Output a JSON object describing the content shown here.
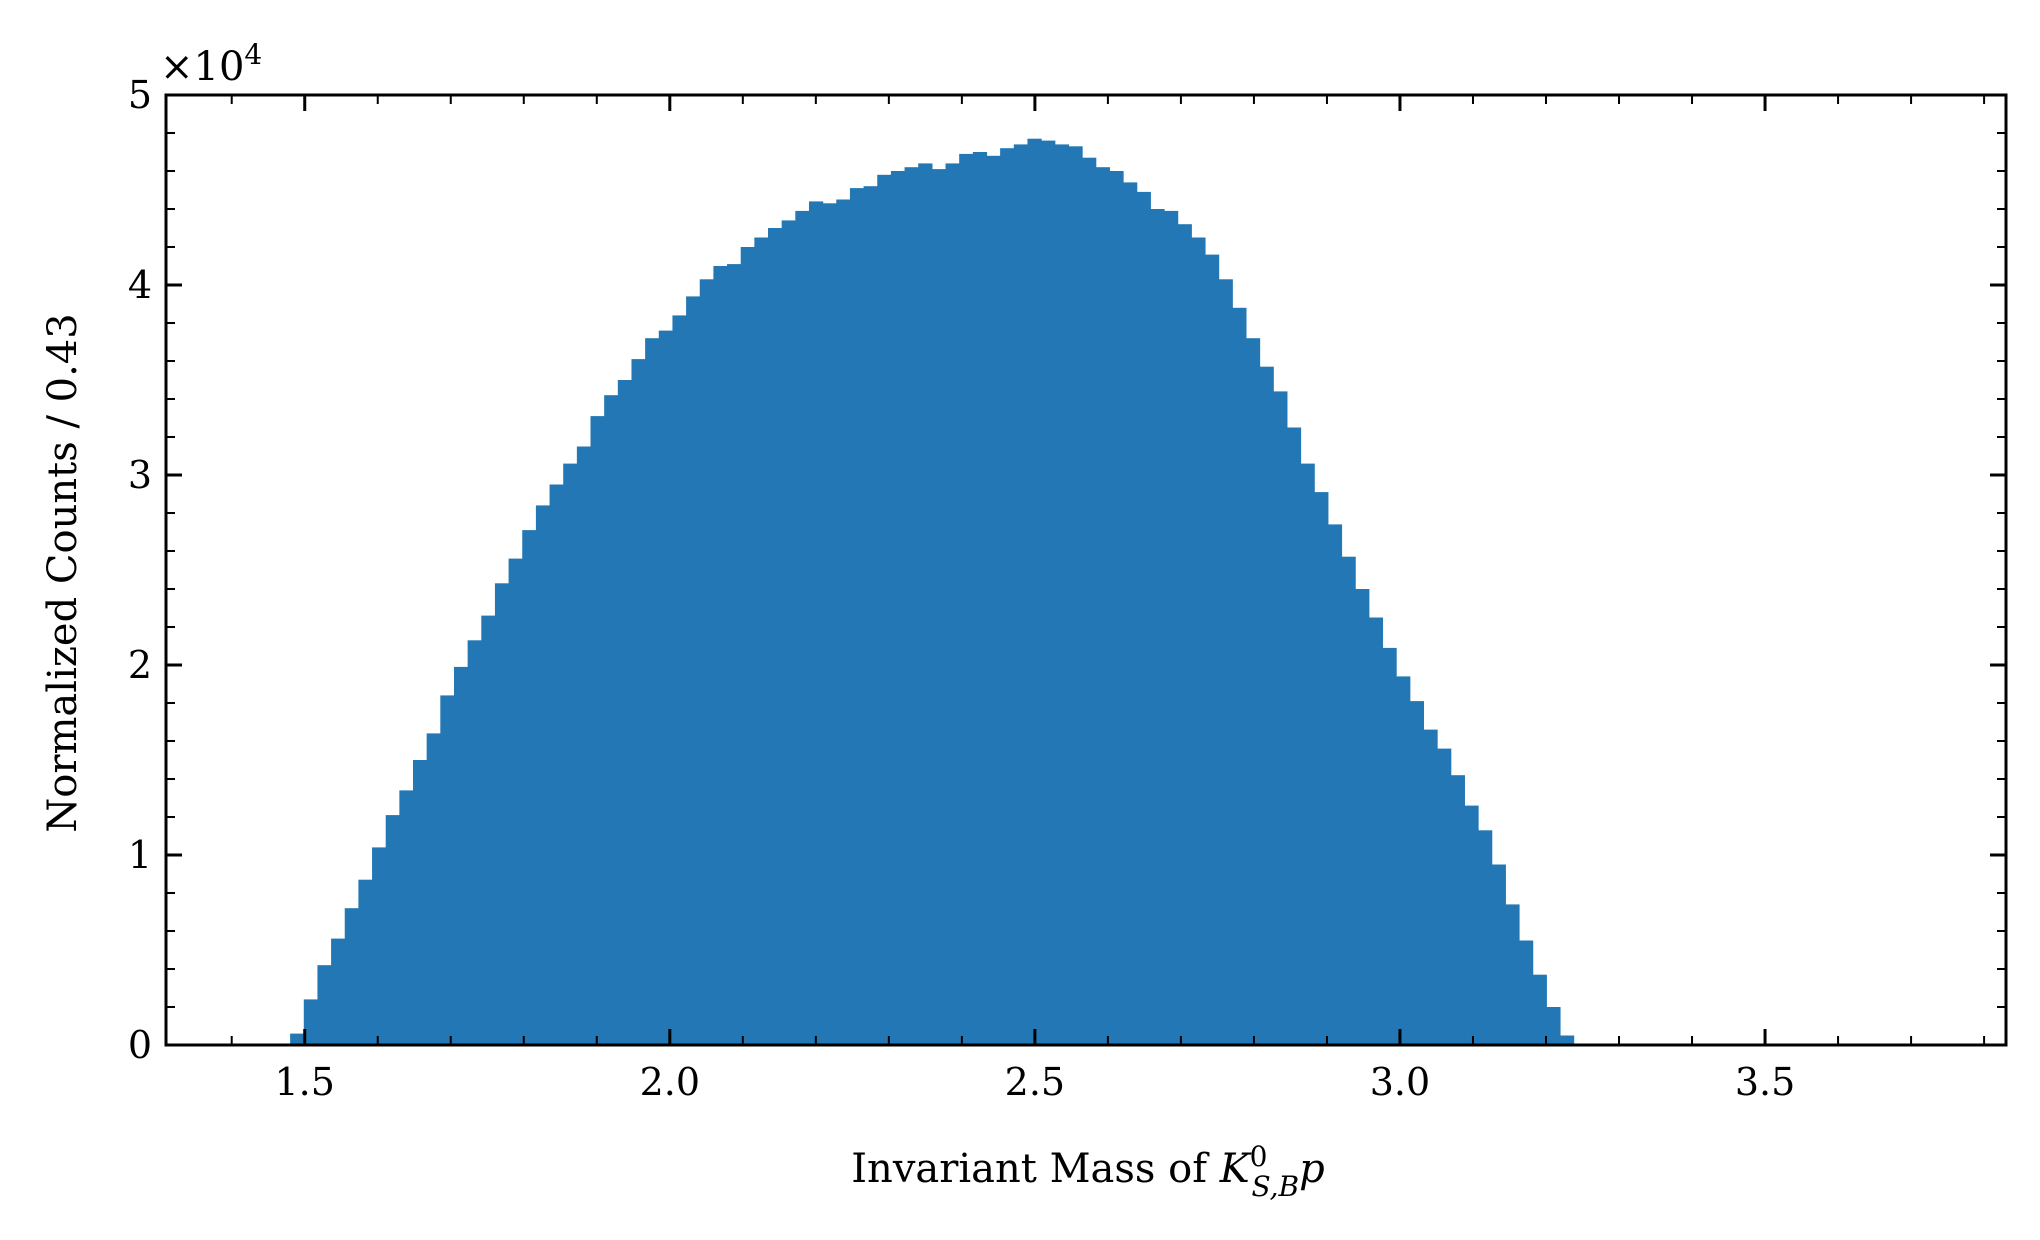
{
  "chart_data": {
    "type": "bar",
    "title": "",
    "ylabel": "Normalized Counts / 0.43",
    "xlabel_prefix": "Invariant Mass of ",
    "xlabel_symbol": "K",
    "xlabel_sup": "0",
    "xlabel_sub": "S,B",
    "xlabel_suffix": "p",
    "multiplier_label": "×10",
    "multiplier_exp": "4",
    "xlim": [
      1.31,
      3.83
    ],
    "ylim": [
      0,
      50000
    ],
    "x_ticks": [
      "1.5",
      "2.0",
      "2.5",
      "3.0",
      "3.5"
    ],
    "x_tick_values": [
      1.5,
      2.0,
      2.5,
      3.0,
      3.5
    ],
    "y_ticks": [
      "0",
      "1",
      "2",
      "3",
      "4",
      "5"
    ],
    "y_tick_values": [
      0,
      10000,
      20000,
      30000,
      40000,
      50000
    ],
    "grid": false,
    "bin_start": 1.48,
    "bin_width": 0.0187,
    "values": [
      600,
      2400,
      4200,
      5600,
      7200,
      8700,
      10400,
      12100,
      13400,
      15000,
      16400,
      18400,
      19900,
      21300,
      22600,
      24300,
      25600,
      27100,
      28400,
      29500,
      30600,
      31500,
      33100,
      34200,
      35000,
      36100,
      37200,
      37600,
      38400,
      39400,
      40300,
      41000,
      41100,
      42000,
      42500,
      43000,
      43400,
      43900,
      44400,
      44300,
      44500,
      45100,
      45200,
      45800,
      46000,
      46200,
      46400,
      46100,
      46400,
      46900,
      47000,
      46800,
      47200,
      47400,
      47700,
      47600,
      47400,
      47300,
      46700,
      46200,
      46000,
      45400,
      44900,
      44000,
      43900,
      43200,
      42500,
      41600,
      40300,
      38800,
      37200,
      35700,
      34400,
      32500,
      30600,
      29100,
      27400,
      25700,
      24000,
      22500,
      20900,
      19400,
      18100,
      16600,
      15600,
      14200,
      12600,
      11300,
      9500,
      7400,
      5500,
      3700,
      2000,
      500
    ],
    "bar_color": "#2277b4"
  }
}
